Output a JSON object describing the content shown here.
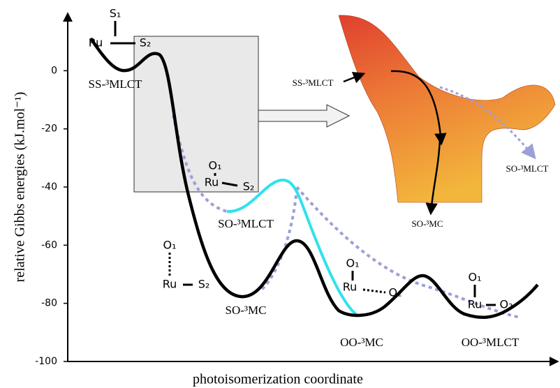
{
  "chart_data": {
    "type": "line",
    "y_label": "relative Gibbs energies (kJ.mol⁻¹)",
    "x_label": "photoisomerization coordinate",
    "ylim": [
      -100,
      20
    ],
    "yticks": [
      -100,
      -80,
      -60,
      -40,
      -20,
      0
    ],
    "annotations": [
      "S₁",
      "Ru",
      "S₂",
      "SS-³MLCT",
      "O₁",
      "Ru",
      "S₂",
      "SO-³MLCT",
      "O₁",
      "Ru",
      "S₂",
      "SO-³MC",
      "O₁",
      "Ru",
      "O₂",
      "OO-³MC",
      "O₁",
      "Ru",
      "O₂",
      "OO-³MLCT",
      "SS-³MLCT",
      "SO-³MLCT",
      "SO-³MC"
    ]
  }
}
